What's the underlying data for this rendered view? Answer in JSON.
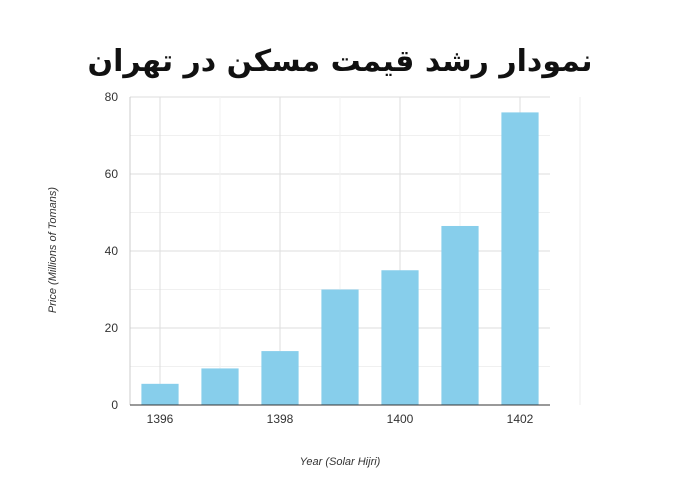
{
  "chart_data": {
    "type": "bar",
    "title": "نمودار رشد قیمت مسکن در تهران",
    "xlabel": "Year (Solar Hijri)",
    "ylabel": "Price (Millions of Tomans)",
    "x": [
      1396,
      1397,
      1398,
      1399,
      1400,
      1401,
      1402
    ],
    "values": [
      5.5,
      9.5,
      14,
      30,
      35,
      46.5,
      76
    ],
    "x_tick_labels": [
      "1396",
      "1398",
      "1400",
      "1402"
    ],
    "y_ticks": [
      0,
      20,
      40,
      60,
      80
    ],
    "ylim": [
      0,
      80
    ],
    "bar_color": "#87ceeb",
    "grid": true,
    "legend": "none"
  }
}
